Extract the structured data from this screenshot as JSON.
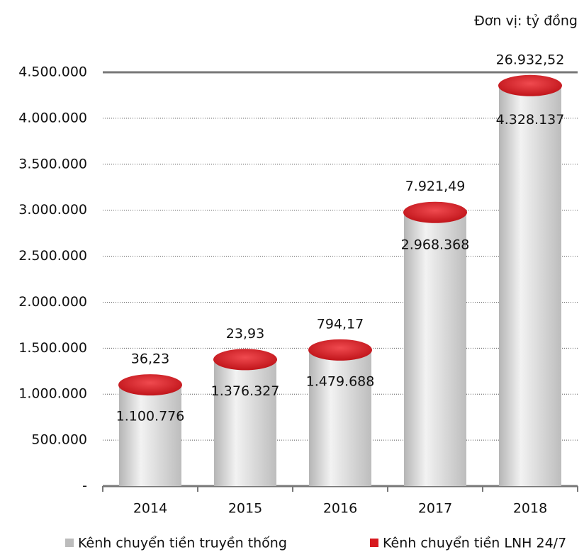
{
  "chart_data": {
    "type": "bar",
    "stacked": true,
    "subtitle": "Đơn vị: tỷ đồng",
    "categories": [
      "2014",
      "2015",
      "2016",
      "2017",
      "2018"
    ],
    "series": [
      {
        "name": "Kênh chuyển tiền truyền thống",
        "color": "#c9c9c9",
        "values": [
          1100776,
          1376327,
          1479688,
          2968368,
          4328137
        ],
        "value_labels": [
          "1.100.776",
          "1.376.327",
          "1.479.688",
          "2.968.368",
          "4.328.137"
        ]
      },
      {
        "name": "Kênh chuyển tiền LNH 24/7",
        "color": "#d7191f",
        "values": [
          36.23,
          23.93,
          794.17,
          7921.49,
          26932.52
        ],
        "value_labels": [
          "36,23",
          "23,93",
          "794,17",
          "7.921,49",
          "26.932,52"
        ]
      }
    ],
    "ylim": [
      0,
      4500000
    ],
    "yticks": [
      {
        "value": 0,
        "label": "-"
      },
      {
        "value": 500000,
        "label": "500.000"
      },
      {
        "value": 1000000,
        "label": "1.000.000"
      },
      {
        "value": 1500000,
        "label": "1.500.000"
      },
      {
        "value": 2000000,
        "label": "2.000.000"
      },
      {
        "value": 2500000,
        "label": "2.500.000"
      },
      {
        "value": 3000000,
        "label": "3.000.000"
      },
      {
        "value": 3500000,
        "label": "3.500.000"
      },
      {
        "value": 4000000,
        "label": "4.000.000"
      },
      {
        "value": 4500000,
        "label": "4.500.000"
      }
    ],
    "grid": true,
    "legend": "bottom"
  }
}
